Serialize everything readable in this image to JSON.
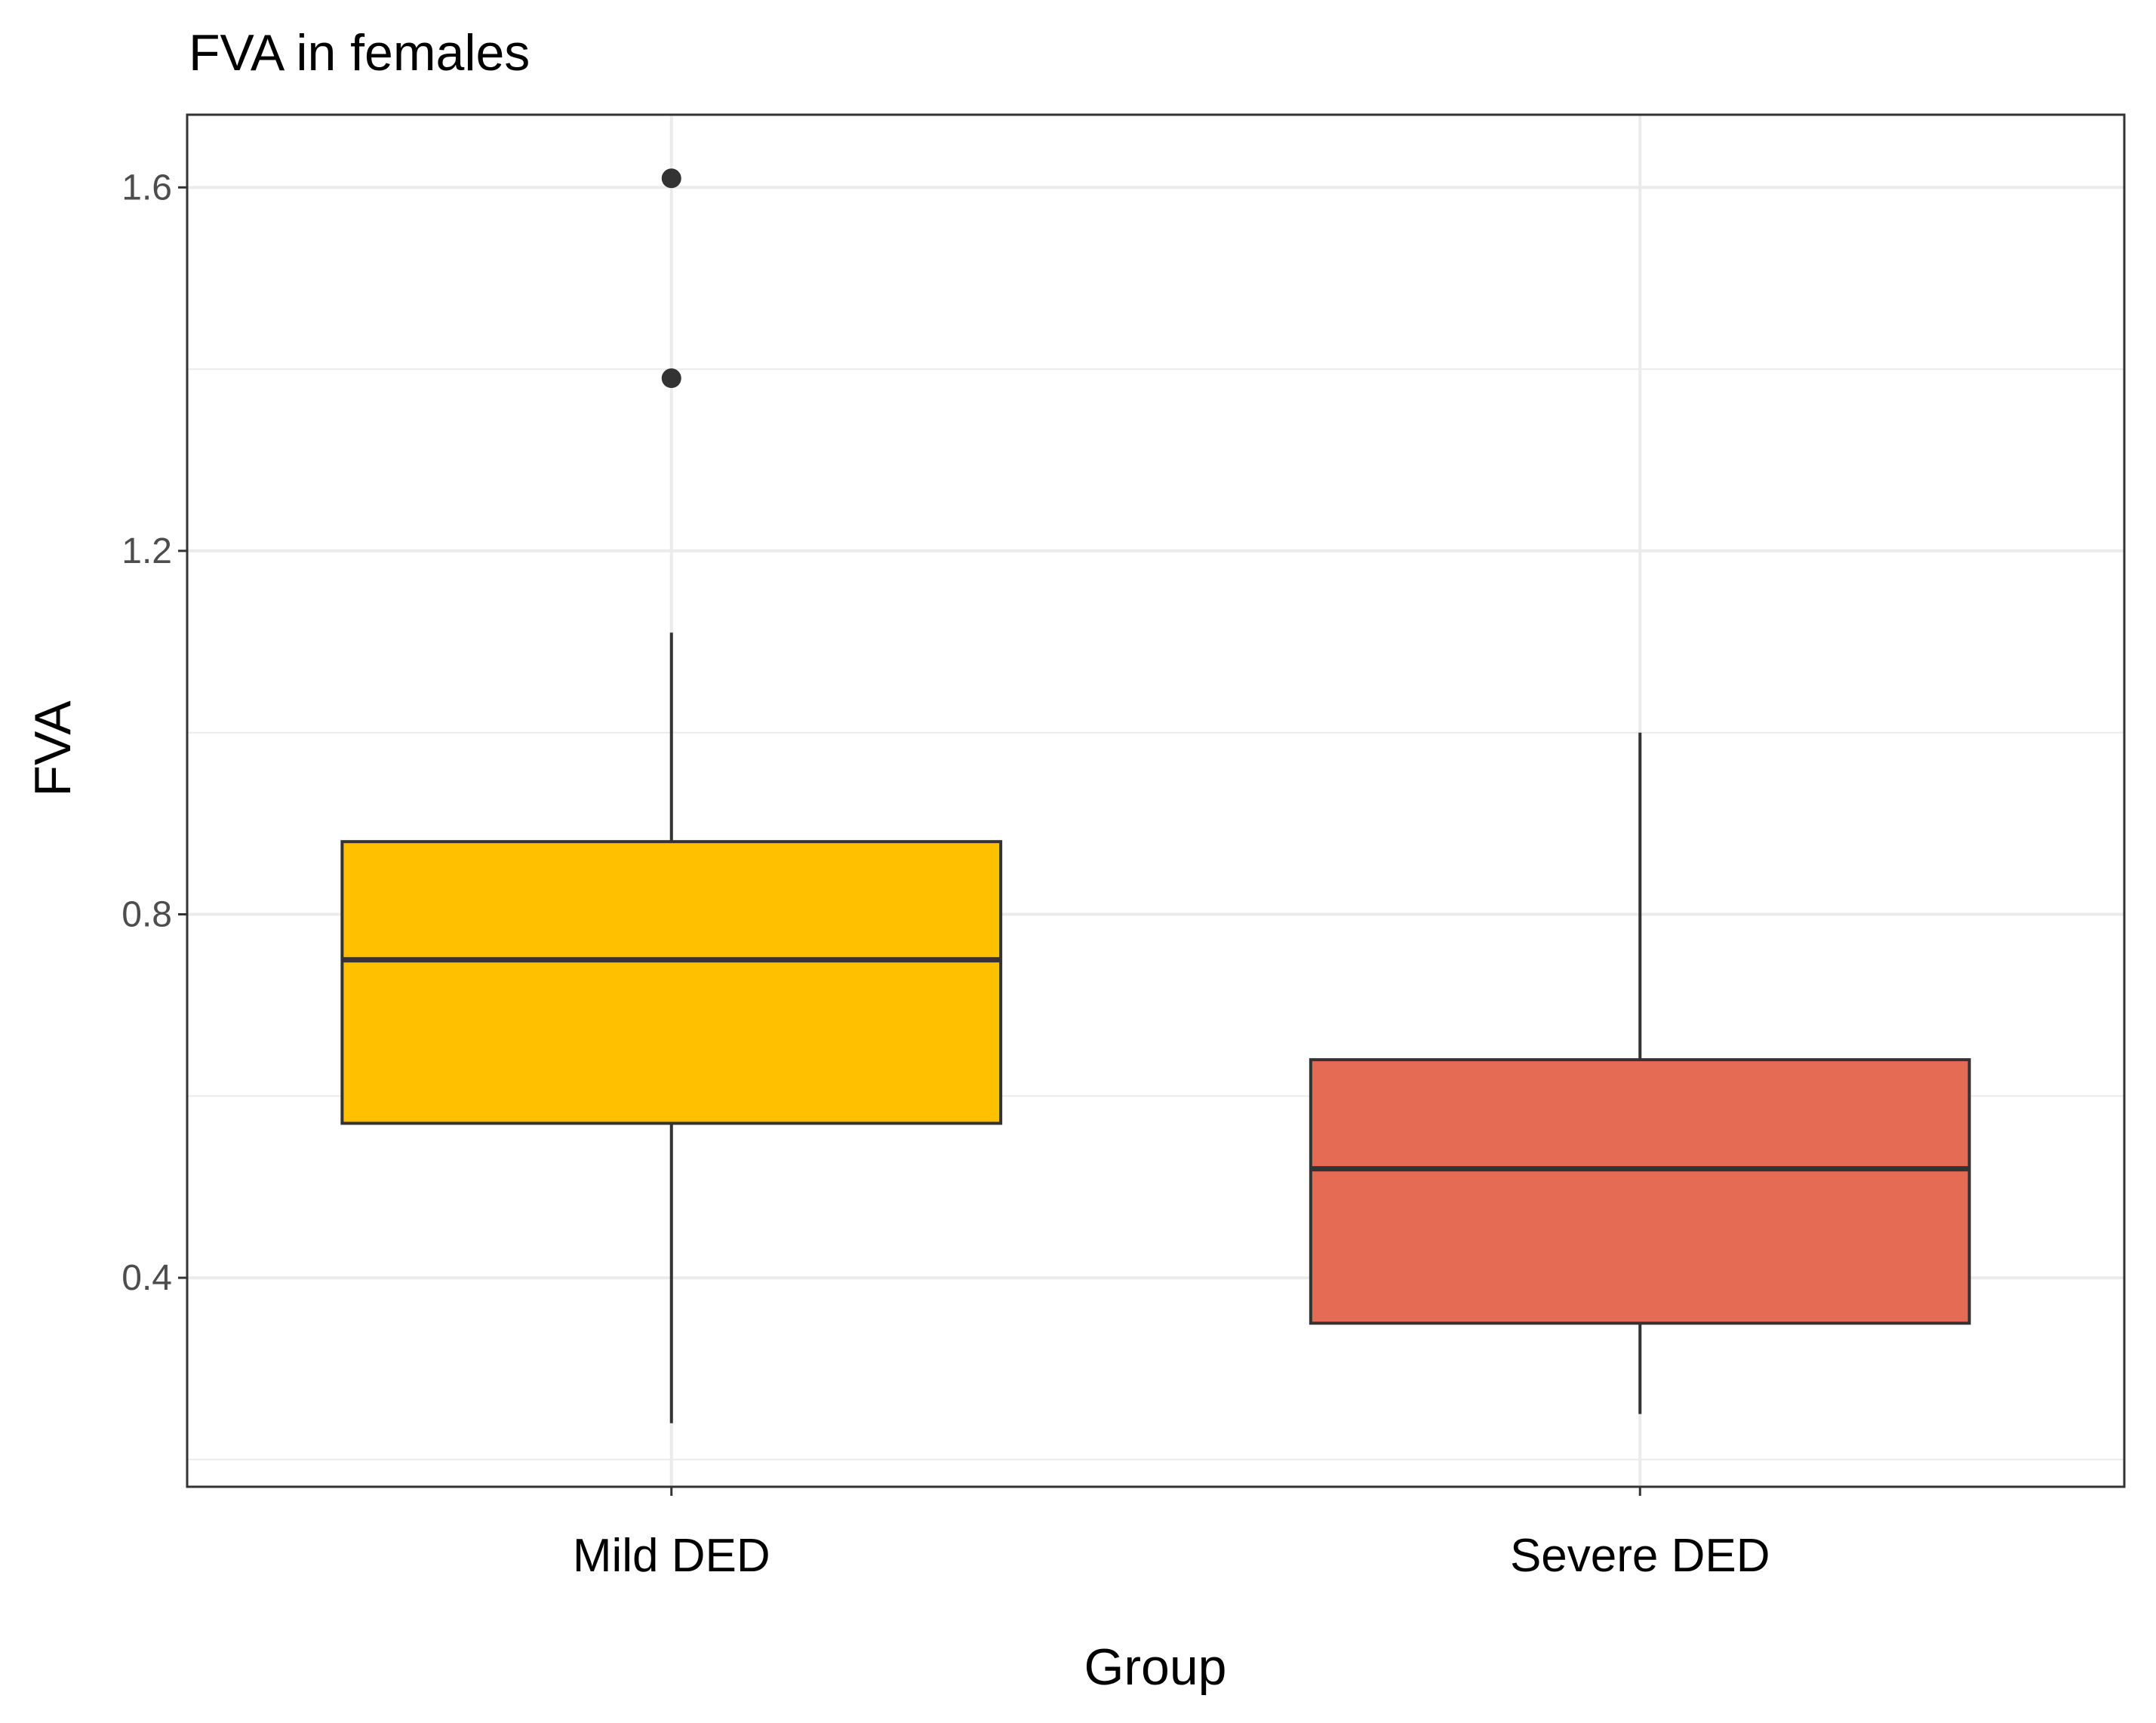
{
  "chart_data": {
    "type": "boxplot",
    "title": "FVA in females",
    "xlabel": "Group",
    "ylabel": "FVA",
    "ylim": [
      0.17,
      1.68
    ],
    "yticks": [
      0.4,
      0.8,
      1.2,
      1.6
    ],
    "ytick_labels": [
      "0.4",
      "0.8",
      "1.2",
      "1.6"
    ],
    "grid": true,
    "categories": [
      "Mild DED",
      "Severe DED"
    ],
    "boxes": [
      {
        "group": "Mild DED",
        "whisker_low": 0.24,
        "q1": 0.57,
        "median": 0.75,
        "q3": 0.88,
        "whisker_high": 1.11,
        "outliers": [
          1.61,
          1.39
        ],
        "fill": "#FFC000"
      },
      {
        "group": "Severe DED",
        "whisker_low": 0.25,
        "q1": 0.35,
        "median": 0.52,
        "q3": 0.64,
        "whisker_high": 1.0,
        "outliers": [],
        "fill": "#E56B54"
      }
    ]
  }
}
